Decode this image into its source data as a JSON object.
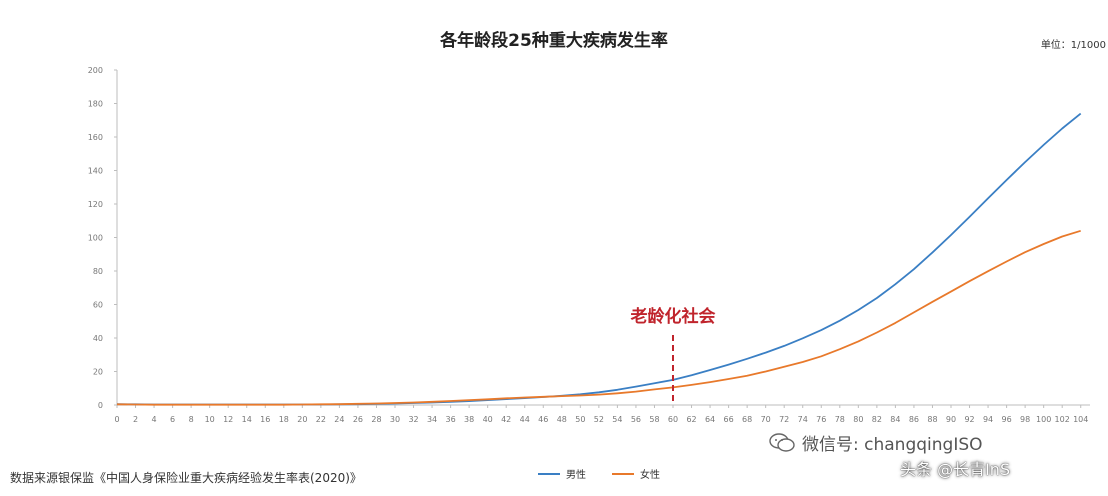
{
  "chart_data": {
    "type": "line",
    "title": "各年龄段25种重大疾病发生率",
    "unit_note": "单位：1/1000",
    "x": [
      0,
      2,
      4,
      6,
      8,
      10,
      12,
      14,
      16,
      18,
      20,
      22,
      24,
      26,
      28,
      30,
      32,
      34,
      36,
      38,
      40,
      42,
      44,
      46,
      48,
      50,
      52,
      54,
      56,
      58,
      60,
      62,
      64,
      66,
      68,
      70,
      72,
      74,
      76,
      78,
      80,
      82,
      84,
      86,
      88,
      90,
      92,
      94,
      96,
      98,
      100,
      102,
      104
    ],
    "xlim": [
      0,
      105
    ],
    "ylim": [
      0,
      200
    ],
    "y_ticks": [
      0,
      20,
      40,
      60,
      80,
      100,
      120,
      140,
      160,
      180,
      200
    ],
    "y_tick_labels": [
      "0",
      "20",
      "40",
      "60",
      "80",
      "100",
      "120",
      "140",
      "160",
      "180",
      "200"
    ],
    "series": [
      {
        "name": "男性",
        "color": "#3a7fc4",
        "values": [
          0.5,
          0.4,
          0.3,
          0.3,
          0.3,
          0.3,
          0.3,
          0.3,
          0.3,
          0.3,
          0.3,
          0.3,
          0.4,
          0.5,
          0.7,
          0.9,
          1.2,
          1.5,
          1.9,
          2.3,
          2.9,
          3.5,
          4.1,
          4.8,
          5.5,
          6.4,
          7.6,
          9.1,
          11.0,
          13.0,
          15.0,
          17.8,
          20.9,
          24.1,
          27.6,
          31.3,
          35.3,
          39.8,
          44.7,
          50.3,
          56.7,
          63.9,
          72.1,
          81.1,
          91.1,
          101.5,
          112.3,
          123.4,
          134.3,
          145.0,
          155.3,
          165.1,
          174.0
        ]
      },
      {
        "name": "女性",
        "color": "#e8792b",
        "values": [
          0.4,
          0.3,
          0.2,
          0.2,
          0.2,
          0.2,
          0.2,
          0.2,
          0.2,
          0.2,
          0.3,
          0.4,
          0.5,
          0.7,
          0.9,
          1.2,
          1.5,
          1.9,
          2.4,
          2.9,
          3.4,
          4.0,
          4.5,
          4.9,
          5.3,
          5.7,
          6.2,
          7.0,
          8.0,
          9.3,
          10.5,
          12.0,
          13.7,
          15.5,
          17.5,
          20.0,
          22.8,
          25.7,
          29.1,
          33.3,
          38.0,
          43.3,
          49.0,
          55.3,
          61.6,
          67.7,
          73.9,
          79.9,
          85.7,
          91.2,
          96.1,
          100.6,
          104.0
        ]
      }
    ],
    "annotation": {
      "label": "老龄化社会",
      "x": 60,
      "color": "#c0242c"
    },
    "legend_position": "bottom-center",
    "grid": false
  },
  "footer": {
    "source": "数据来源银保监《中国人身保险业重大疾病经验发生率表(2020)》"
  },
  "watermark": {
    "wechat": "微信号: changqingISO",
    "toutiao": "头条 @长青InS"
  }
}
